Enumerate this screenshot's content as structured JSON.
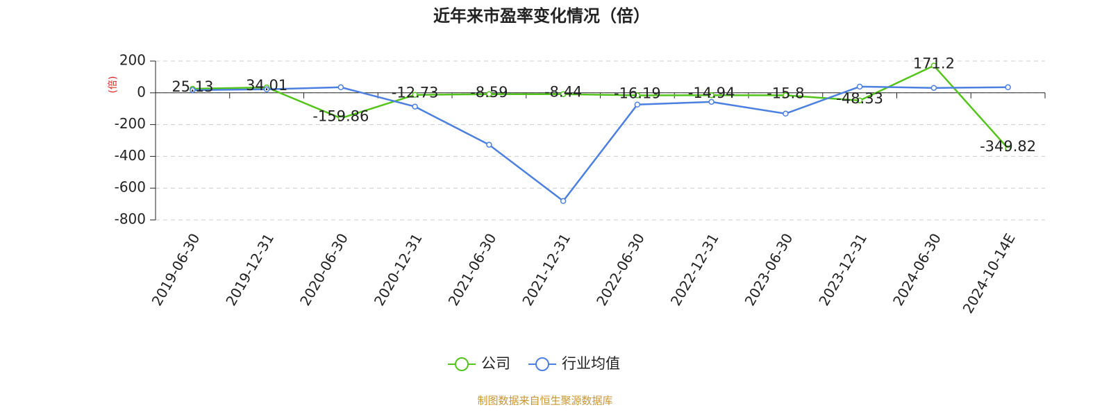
{
  "chart_data": {
    "type": "line",
    "title": "近年来市盈率变化情况（倍）",
    "y_label": "(倍)",
    "categories": [
      "2019-06-30",
      "2019-12-31",
      "2020-06-30",
      "2020-12-31",
      "2021-06-30",
      "2021-12-31",
      "2022-06-30",
      "2022-12-31",
      "2023-06-30",
      "2023-12-31",
      "2024-06-30",
      "2024-10-14E"
    ],
    "series": [
      {
        "name": "公司",
        "color": "#52c41a",
        "values": [
          25.13,
          34.01,
          -159.86,
          -12.73,
          -8.59,
          -8.44,
          -16.19,
          -14.94,
          -15.8,
          -48.33,
          171.2,
          -349.82
        ],
        "show_labels": true
      },
      {
        "name": "行业均值",
        "color": "#4b7fe0",
        "values": [
          17,
          22,
          35,
          -87,
          -327,
          -681,
          -74,
          -57,
          -131,
          39,
          31,
          35
        ],
        "show_labels": false
      }
    ],
    "ylim": [
      -800,
      200
    ],
    "yticks": [
      -800,
      -600,
      -400,
      -200,
      0,
      200
    ],
    "grid": true,
    "legend": "bottom",
    "source": "制图数据来自恒生聚源数据库"
  }
}
